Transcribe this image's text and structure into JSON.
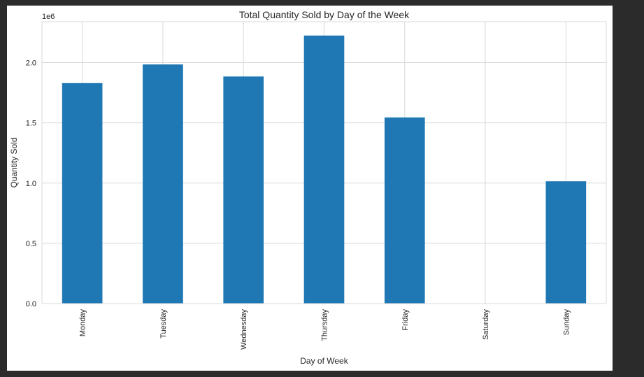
{
  "chart_data": {
    "type": "bar",
    "title": "Total Quantity Sold by Day of the Week",
    "xlabel": "Day of Week",
    "ylabel": "Quantity Sold",
    "y_offset_label": "1e6",
    "categories": [
      "Monday",
      "Tuesday",
      "Wednesday",
      "Thursday",
      "Friday",
      "Saturday",
      "Sunday"
    ],
    "values": [
      1830000,
      1985000,
      1885000,
      2225000,
      1545000,
      0,
      1015000
    ],
    "ylim": [
      0,
      2340000
    ],
    "yticks": [
      0,
      500000,
      1000000,
      1500000,
      2000000
    ],
    "ytick_labels": [
      "0.0",
      "0.5",
      "1.0",
      "1.5",
      "2.0"
    ],
    "grid": true,
    "bar_color": "#1f77b4",
    "grid_color": "#d9d9d9",
    "spine_color": "#d9d9d9"
  }
}
